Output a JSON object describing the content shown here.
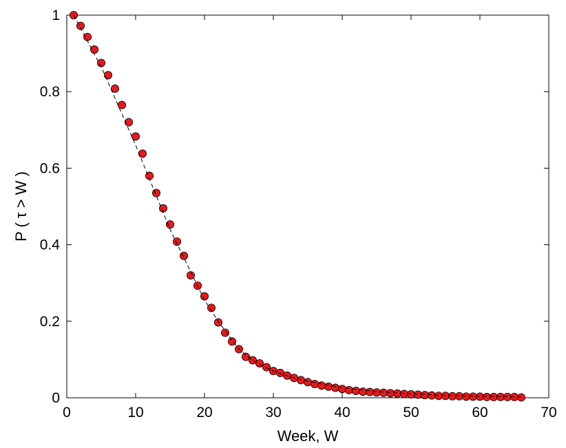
{
  "chart_data": {
    "type": "scatter",
    "title": "",
    "xlabel": "Week, W",
    "ylabel": "P ( τ > W )",
    "xlim": [
      0,
      70
    ],
    "ylim": [
      0,
      1
    ],
    "xticks": [
      0,
      10,
      20,
      30,
      40,
      50,
      60,
      70
    ],
    "yticks": [
      0,
      0.2,
      0.4,
      0.6,
      0.8,
      1
    ],
    "xtick_labels": [
      "0",
      "10",
      "20",
      "30",
      "40",
      "50",
      "60",
      "70"
    ],
    "ytick_labels": [
      "0",
      "0.2",
      "0.4",
      "0.6",
      "0.8",
      "1"
    ],
    "grid": false,
    "legend": "none",
    "series": [
      {
        "style": "markers",
        "marker_color": "#e8191c",
        "x": [
          1,
          2,
          3,
          4,
          5,
          6,
          7,
          8,
          9,
          10,
          11,
          12,
          13,
          14,
          15,
          16,
          17,
          18,
          19,
          20,
          21,
          22,
          23,
          24,
          25,
          26,
          27,
          28,
          29,
          30,
          31,
          32,
          33,
          34,
          35,
          36,
          37,
          38,
          39,
          40,
          41,
          42,
          43,
          44,
          45,
          46,
          47,
          48,
          49,
          50,
          51,
          52,
          53,
          54,
          55,
          56,
          57,
          58,
          59,
          60,
          61,
          62,
          63,
          64,
          65,
          66
        ],
        "y": [
          1.0,
          0.972,
          0.943,
          0.91,
          0.875,
          0.843,
          0.808,
          0.765,
          0.72,
          0.683,
          0.638,
          0.58,
          0.535,
          0.495,
          0.453,
          0.408,
          0.371,
          0.32,
          0.293,
          0.265,
          0.235,
          0.197,
          0.17,
          0.147,
          0.127,
          0.107,
          0.098,
          0.09,
          0.08,
          0.07,
          0.065,
          0.058,
          0.052,
          0.046,
          0.041,
          0.036,
          0.032,
          0.029,
          0.026,
          0.023,
          0.02,
          0.018,
          0.016,
          0.015,
          0.014,
          0.013,
          0.012,
          0.011,
          0.01,
          0.009,
          0.008,
          0.007,
          0.006,
          0.005,
          0.005,
          0.004,
          0.004,
          0.003,
          0.003,
          0.003,
          0.002,
          0.002,
          0.002,
          0.002,
          0.002,
          0.001
        ]
      },
      {
        "style": "dashed-line",
        "line_color": "#000000",
        "x": [
          1,
          5,
          10,
          15,
          20,
          22,
          24,
          25,
          26,
          27,
          28,
          30,
          32,
          35,
          40,
          45,
          50,
          55,
          60,
          66
        ],
        "y": [
          1.0,
          0.865,
          0.66,
          0.44,
          0.255,
          0.2,
          0.15,
          0.128,
          0.112,
          0.098,
          0.087,
          0.07,
          0.057,
          0.043,
          0.026,
          0.016,
          0.01,
          0.006,
          0.004,
          0.002
        ]
      }
    ]
  }
}
